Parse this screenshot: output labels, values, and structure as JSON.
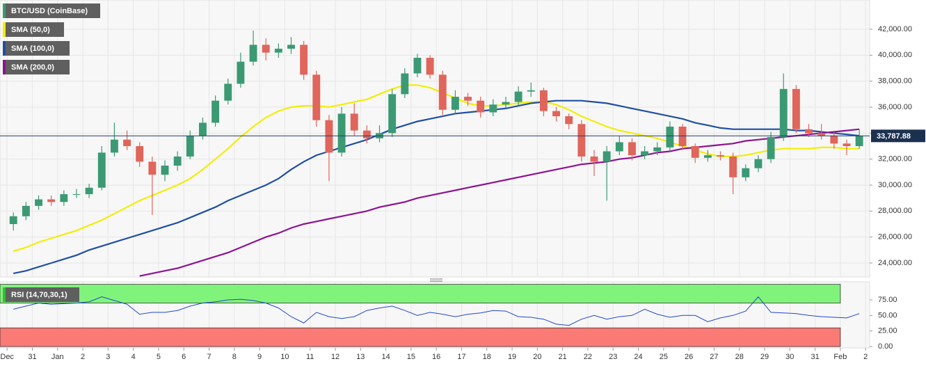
{
  "chart_data": [
    {
      "type": "candlestick",
      "title": "BTC/USD (CoinBase)",
      "x": [
        0.25,
        0.75,
        1.25,
        1.75,
        2.25,
        2.75,
        3.25,
        3.75,
        4.25,
        4.75,
        5.25,
        5.75,
        6.25,
        6.75,
        7.25,
        7.75,
        8.25,
        8.75,
        9.25,
        9.75,
        10.25,
        10.75,
        11.25,
        11.75,
        12.25,
        12.75,
        13.25,
        13.75,
        14.25,
        14.75,
        15.25,
        15.75,
        16.25,
        16.75,
        17.25,
        17.75,
        18.25,
        18.75,
        19.25,
        19.75,
        20.25,
        20.75,
        21.25,
        21.75,
        22.25,
        22.75,
        23.25,
        23.75,
        24.25,
        24.75,
        25.25,
        25.75,
        26.25,
        26.75,
        27.25,
        27.75,
        28.25,
        28.75,
        29.25,
        29.75,
        30.25,
        30.75,
        31.25,
        31.75,
        32.25,
        32.75,
        33.25,
        33.75
      ],
      "ohlc": [
        [
          27000,
          27900,
          26500,
          27600
        ],
        [
          27600,
          28700,
          27300,
          28400
        ],
        [
          28400,
          29200,
          28100,
          28900
        ],
        [
          28900,
          29200,
          28400,
          28700
        ],
        [
          28700,
          29600,
          28400,
          29300
        ],
        [
          29300,
          29700,
          29000,
          29300
        ],
        [
          29300,
          30100,
          29000,
          29800
        ],
        [
          29800,
          33000,
          29600,
          32500
        ],
        [
          32500,
          34800,
          32200,
          33500
        ],
        [
          33500,
          34200,
          32700,
          33000
        ],
        [
          33000,
          33300,
          31400,
          31800
        ],
        [
          31800,
          32200,
          27700,
          30800
        ],
        [
          30800,
          31900,
          30300,
          31500
        ],
        [
          31500,
          32600,
          31100,
          32200
        ],
        [
          32200,
          34200,
          32000,
          33800
        ],
        [
          33800,
          35200,
          33500,
          34800
        ],
        [
          34800,
          36900,
          34500,
          36500
        ],
        [
          36500,
          38200,
          36200,
          37800
        ],
        [
          37800,
          40200,
          37500,
          39500
        ],
        [
          39500,
          41900,
          39200,
          40800
        ],
        [
          40800,
          41300,
          39600,
          40200
        ],
        [
          40200,
          40900,
          39800,
          40500
        ],
        [
          40500,
          41400,
          40100,
          40800
        ],
        [
          40800,
          41100,
          38100,
          38500
        ],
        [
          38500,
          38800,
          34500,
          35000
        ],
        [
          35000,
          35400,
          30300,
          32500
        ],
        [
          32500,
          36000,
          32200,
          35500
        ],
        [
          35500,
          36300,
          33800,
          34200
        ],
        [
          34200,
          34600,
          33200,
          33600
        ],
        [
          33600,
          34600,
          33300,
          34000
        ],
        [
          34000,
          37400,
          33700,
          37000
        ],
        [
          37000,
          39000,
          36700,
          38600
        ],
        [
          38600,
          40100,
          38300,
          39800
        ],
        [
          39800,
          40000,
          38200,
          38500
        ],
        [
          38500,
          38800,
          35400,
          35800
        ],
        [
          35800,
          37300,
          35500,
          36800
        ],
        [
          36800,
          37100,
          36100,
          36500
        ],
        [
          36500,
          36800,
          35200,
          35600
        ],
        [
          35600,
          36600,
          35300,
          36200
        ],
        [
          36200,
          36800,
          35900,
          36400
        ],
        [
          36400,
          37600,
          36100,
          37200
        ],
        [
          37200,
          37900,
          36800,
          37300
        ],
        [
          37300,
          37500,
          35300,
          35700
        ],
        [
          35700,
          36000,
          34900,
          35300
        ],
        [
          35300,
          35500,
          34300,
          34700
        ],
        [
          34700,
          35000,
          31800,
          32200
        ],
        [
          32200,
          32700,
          30700,
          31800
        ],
        [
          31800,
          33000,
          28800,
          32600
        ],
        [
          32600,
          33800,
          32300,
          33300
        ],
        [
          33300,
          33600,
          31900,
          32300
        ],
        [
          32300,
          33000,
          32000,
          32600
        ],
        [
          32600,
          33300,
          32300,
          32900
        ],
        [
          32900,
          34900,
          32600,
          34500
        ],
        [
          34500,
          34700,
          32700,
          33000
        ],
        [
          33000,
          33200,
          31700,
          32100
        ],
        [
          32100,
          32700,
          31800,
          32300
        ],
        [
          32300,
          32600,
          31900,
          32200
        ],
        [
          32200,
          32500,
          29300,
          30600
        ],
        [
          30600,
          31600,
          30300,
          31300
        ],
        [
          31300,
          32300,
          31000,
          32000
        ],
        [
          32000,
          34100,
          31700,
          33700
        ],
        [
          33700,
          38600,
          33400,
          37400
        ],
        [
          37400,
          37700,
          34000,
          34300
        ],
        [
          34300,
          34700,
          33700,
          34000
        ],
        [
          34000,
          34700,
          33500,
          33800
        ],
        [
          33800,
          34100,
          32800,
          33200
        ],
        [
          33200,
          33500,
          32300,
          33000
        ],
        [
          33000,
          34300,
          32800,
          33788
        ]
      ],
      "up_color": "#3b9a73",
      "down_color": "#e0655a",
      "series": [
        {
          "name": "SMA (50,0)",
          "color": "#f2ee00",
          "values": [
            24900,
            25200,
            25600,
            25900,
            26200,
            26500,
            26900,
            27300,
            27800,
            28300,
            28800,
            29200,
            29600,
            30000,
            30500,
            31200,
            32000,
            32800,
            33700,
            34500,
            35200,
            35700,
            36000,
            36100,
            36100,
            36000,
            36200,
            36400,
            36600,
            37000,
            37400,
            37700,
            37700,
            37500,
            37100,
            36700,
            36300,
            36100,
            36100,
            36200,
            36300,
            36400,
            36400,
            36200,
            35800,
            35300,
            34900,
            34500,
            34200,
            34000,
            33800,
            33600,
            33300,
            33000,
            32700,
            32400,
            32200,
            32200,
            32300,
            32500,
            32700,
            32800,
            32800,
            32800,
            32900,
            32900,
            32800,
            32800
          ]
        },
        {
          "name": "SMA (100,0)",
          "color": "#1f4fa3",
          "values": [
            23200,
            23400,
            23700,
            24000,
            24300,
            24600,
            25000,
            25300,
            25600,
            25900,
            26200,
            26500,
            26800,
            27100,
            27500,
            27900,
            28300,
            28800,
            29200,
            29600,
            30000,
            30500,
            31200,
            31800,
            32300,
            32600,
            32900,
            33200,
            33500,
            33900,
            34300,
            34600,
            34900,
            35100,
            35300,
            35500,
            35600,
            35700,
            35800,
            35900,
            36100,
            36300,
            36400,
            36500,
            36500,
            36500,
            36400,
            36300,
            36100,
            35900,
            35700,
            35500,
            35300,
            35100,
            34800,
            34600,
            34400,
            34300,
            34300,
            34300,
            34300,
            34300,
            34200,
            34200,
            34100,
            34000,
            33900,
            33800
          ]
        },
        {
          "name": "SMA (200,0)",
          "color": "#8e1291",
          "values": [
            null,
            null,
            null,
            null,
            null,
            null,
            null,
            null,
            null,
            null,
            23000,
            23200,
            23400,
            23600,
            23900,
            24200,
            24500,
            24800,
            25200,
            25600,
            26000,
            26300,
            26700,
            27000,
            27200,
            27400,
            27600,
            27800,
            28000,
            28300,
            28500,
            28700,
            29000,
            29200,
            29400,
            29600,
            29800,
            30000,
            30200,
            30400,
            30600,
            30800,
            31000,
            31200,
            31400,
            31600,
            31700,
            31800,
            32000,
            32100,
            32300,
            32500,
            32600,
            32800,
            32900,
            33000,
            33100,
            33200,
            33400,
            33500,
            33600,
            33700,
            33800,
            33900,
            34000,
            34100,
            34200,
            34300
          ]
        }
      ],
      "last_price": {
        "value": 33787.88,
        "label": "33,787.88"
      },
      "xlim": [
        -0.28,
        34.16
      ],
      "ylim": [
        22929,
        44250
      ],
      "yticks": [
        {
          "value": 24000,
          "label": "24,000.00"
        },
        {
          "value": 26000,
          "label": "26,000.00"
        },
        {
          "value": 28000,
          "label": "28,000.00"
        },
        {
          "value": 30000,
          "label": "30,000.00"
        },
        {
          "value": 32000,
          "label": "32,000.00"
        },
        {
          "value": 34000,
          "label": "34,000.00"
        },
        {
          "value": 36000,
          "label": "36,000.00"
        },
        {
          "value": 38000,
          "label": "38,000.00"
        },
        {
          "value": 40000,
          "label": "40,000.00"
        },
        {
          "value": 42000,
          "label": "42,000.00"
        }
      ],
      "grid": true
    },
    {
      "type": "line",
      "series": [
        {
          "name": "RSI (14,70,30,1)",
          "color": "#2146d0",
          "values": [
            60,
            65,
            70,
            68,
            69,
            70,
            72,
            80,
            74,
            68,
            52,
            55,
            55,
            58,
            65,
            70,
            72,
            75,
            76,
            74,
            70,
            62,
            48,
            38,
            55,
            48,
            45,
            48,
            58,
            62,
            65,
            58,
            50,
            55,
            52,
            48,
            52,
            54,
            58,
            57,
            48,
            47,
            44,
            36,
            34,
            44,
            50,
            44,
            48,
            50,
            60,
            52,
            47,
            50,
            50,
            40,
            46,
            50,
            57,
            80,
            55,
            54,
            53,
            50,
            48,
            47,
            46,
            53
          ]
        }
      ],
      "overbought": [
        70,
        100
      ],
      "oversold": [
        0,
        30
      ],
      "overbought_color": "#80f47a",
      "oversold_color": "#fa7a76",
      "xlim": [
        -0.28,
        34.16
      ],
      "ylim": [
        -2.2,
        104.1
      ],
      "yticks": [
        {
          "value": 0,
          "label": "0.00"
        },
        {
          "value": 25,
          "label": "25.00"
        },
        {
          "value": 50,
          "label": "50.00"
        },
        {
          "value": 75,
          "label": "75.00"
        }
      ],
      "xticks": [
        {
          "value": 0,
          "label": "Dec"
        },
        {
          "value": 1,
          "label": "31"
        },
        {
          "value": 2,
          "label": "Jan"
        },
        {
          "value": 3,
          "label": "2"
        },
        {
          "value": 4,
          "label": "3"
        },
        {
          "value": 5,
          "label": "4"
        },
        {
          "value": 6,
          "label": "5"
        },
        {
          "value": 7,
          "label": "6"
        },
        {
          "value": 8,
          "label": "7"
        },
        {
          "value": 9,
          "label": "8"
        },
        {
          "value": 10,
          "label": "9"
        },
        {
          "value": 11,
          "label": "10"
        },
        {
          "value": 12,
          "label": "11"
        },
        {
          "value": 13,
          "label": "12"
        },
        {
          "value": 14,
          "label": "13"
        },
        {
          "value": 15,
          "label": "14"
        },
        {
          "value": 16,
          "label": "15"
        },
        {
          "value": 17,
          "label": "16"
        },
        {
          "value": 18,
          "label": "17"
        },
        {
          "value": 19,
          "label": "18"
        },
        {
          "value": 20,
          "label": "19"
        },
        {
          "value": 21,
          "label": "20"
        },
        {
          "value": 22,
          "label": "21"
        },
        {
          "value": 23,
          "label": "22"
        },
        {
          "value": 24,
          "label": "23"
        },
        {
          "value": 25,
          "label": "24"
        },
        {
          "value": 26,
          "label": "25"
        },
        {
          "value": 27,
          "label": "26"
        },
        {
          "value": 28,
          "label": "27"
        },
        {
          "value": 29,
          "label": "28"
        },
        {
          "value": 30,
          "label": "29"
        },
        {
          "value": 31,
          "label": "30"
        },
        {
          "value": 32,
          "label": "31"
        },
        {
          "value": 33,
          "label": "Feb"
        },
        {
          "value": 34,
          "label": "2"
        }
      ]
    }
  ]
}
